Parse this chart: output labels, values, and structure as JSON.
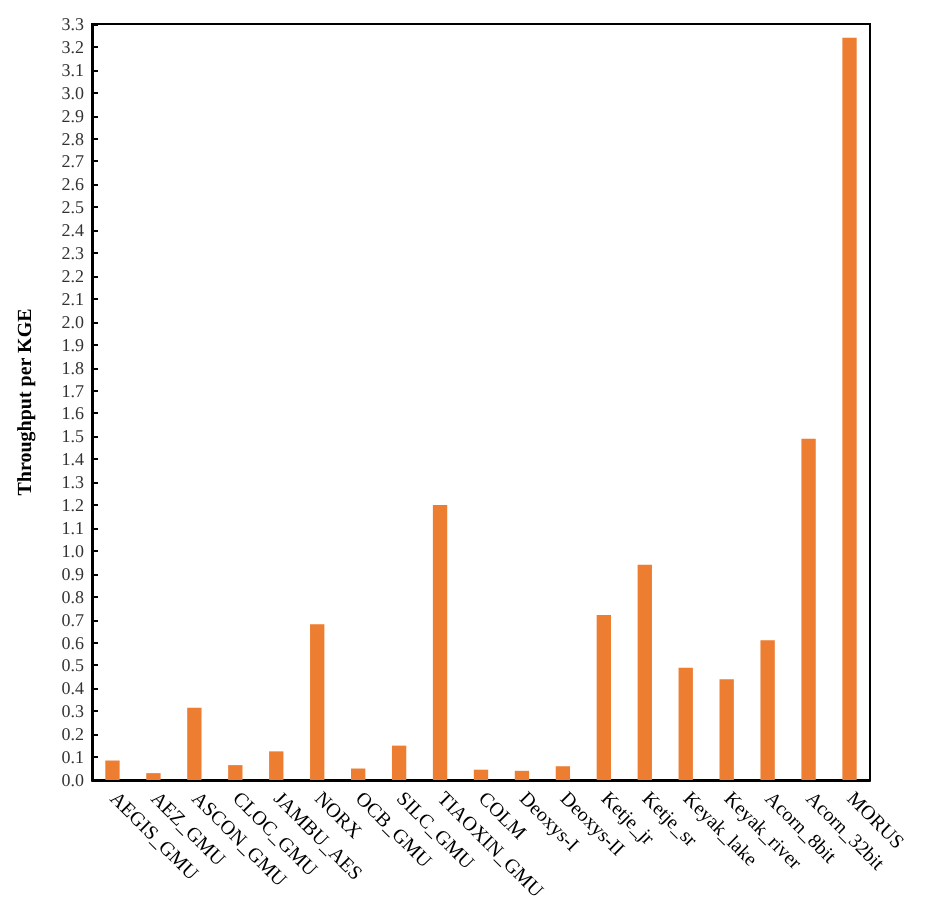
{
  "chart_data": {
    "type": "bar",
    "ylabel": "Throughput per KGE",
    "categories": [
      "AEGIS_GMU",
      "AEZ_GMU",
      "ASCON_GMU",
      "CLOC_GMU",
      "JAMBU_AES",
      "NORX",
      "OCB_GMU",
      "SILC_GMU",
      "TIAOXIN_GMU",
      "COLM",
      "Deoxys-I",
      "Deoxys-II",
      "Ketje_jr",
      "Ketje_sr",
      "Keyak_lake",
      "Keyak_river",
      "Acorn_8bit",
      "Acorn_32bit",
      "MORUS"
    ],
    "values": [
      0.085,
      0.03,
      0.315,
      0.065,
      0.125,
      0.68,
      0.05,
      0.15,
      1.2,
      0.045,
      0.04,
      0.06,
      0.72,
      0.94,
      0.49,
      0.44,
      0.61,
      1.49,
      3.24
    ],
    "color": "#ed7d31",
    "ylim": [
      0,
      3.3
    ],
    "yticks": [
      {
        "value": 0,
        "label": "0.0"
      },
      0.1,
      0.2,
      0.3,
      0.4,
      0.5,
      0.6,
      0.7,
      0.8,
      0.9,
      {
        "value": 1,
        "label": "1.0"
      },
      1.1,
      1.2,
      1.3,
      1.4,
      1.5,
      1.6,
      1.7,
      1.8,
      1.9,
      {
        "value": 2,
        "label": "2.0"
      },
      2.1,
      2.2,
      2.3,
      2.4,
      2.5,
      2.6,
      2.7,
      2.8,
      2.9,
      {
        "value": 3,
        "label": "3.0"
      },
      3.1,
      3.2,
      3.3
    ],
    "grid": false
  }
}
